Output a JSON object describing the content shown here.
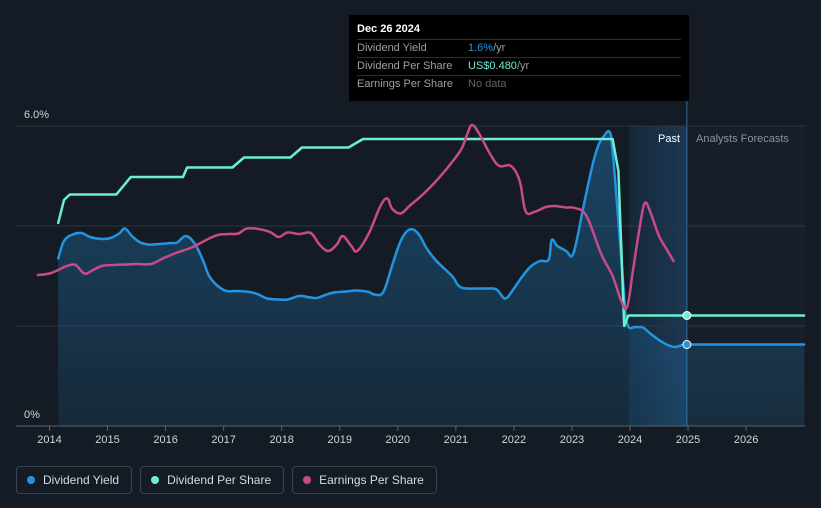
{
  "tooltip": {
    "date": "Dec 26 2024",
    "rows": [
      {
        "label": "Dividend Yield",
        "value": "1.6%",
        "unit": " /yr"
      },
      {
        "label": "Dividend Per Share",
        "value": "US$0.480",
        "unit": " /yr"
      },
      {
        "label": "Earnings Per Share",
        "value": "No data",
        "unit": ""
      }
    ]
  },
  "regions": {
    "past": "Past",
    "forecast": "Analysts Forecasts"
  },
  "legend": [
    {
      "label": "Dividend Yield",
      "color": "#2394df"
    },
    {
      "label": "Dividend Per Share",
      "color": "#6ceed0"
    },
    {
      "label": "Earnings Per Share",
      "color": "#c74a8b"
    }
  ],
  "chart_data": {
    "type": "line",
    "ylim": [
      0,
      6
    ],
    "y_ticks": [
      {
        "value": 6,
        "label": "6.0%"
      },
      {
        "value": 0,
        "label": "0%"
      }
    ],
    "xlim": [
      2013.8,
      2027.0
    ],
    "x_ticks": [
      2014,
      2015,
      2016,
      2017,
      2018,
      2019,
      2020,
      2021,
      2022,
      2023,
      2024,
      2025,
      2026
    ],
    "past_forecast_split": 2024.98,
    "forecast_shade_start": 2023.98,
    "grid": true,
    "legend_placement": "bottom-left",
    "series": [
      {
        "name": "Dividend Yield",
        "color": "#2394df",
        "area": true,
        "values": [
          [
            2014.15,
            3.35
          ],
          [
            2014.25,
            3.7
          ],
          [
            2014.4,
            3.83
          ],
          [
            2014.55,
            3.86
          ],
          [
            2014.7,
            3.78
          ],
          [
            2014.9,
            3.74
          ],
          [
            2015.05,
            3.76
          ],
          [
            2015.2,
            3.85
          ],
          [
            2015.3,
            3.95
          ],
          [
            2015.42,
            3.8
          ],
          [
            2015.55,
            3.68
          ],
          [
            2015.7,
            3.63
          ],
          [
            2015.9,
            3.64
          ],
          [
            2016.1,
            3.66
          ],
          [
            2016.2,
            3.67
          ],
          [
            2016.35,
            3.8
          ],
          [
            2016.5,
            3.65
          ],
          [
            2016.65,
            3.3
          ],
          [
            2016.75,
            3.0
          ],
          [
            2016.9,
            2.8
          ],
          [
            2017.05,
            2.7
          ],
          [
            2017.25,
            2.7
          ],
          [
            2017.45,
            2.68
          ],
          [
            2017.6,
            2.63
          ],
          [
            2017.75,
            2.55
          ],
          [
            2017.95,
            2.53
          ],
          [
            2018.1,
            2.53
          ],
          [
            2018.3,
            2.6
          ],
          [
            2018.45,
            2.58
          ],
          [
            2018.6,
            2.56
          ],
          [
            2018.75,
            2.62
          ],
          [
            2018.9,
            2.67
          ],
          [
            2019.1,
            2.69
          ],
          [
            2019.3,
            2.71
          ],
          [
            2019.5,
            2.68
          ],
          [
            2019.6,
            2.63
          ],
          [
            2019.75,
            2.68
          ],
          [
            2019.9,
            3.2
          ],
          [
            2020.05,
            3.7
          ],
          [
            2020.2,
            3.93
          ],
          [
            2020.35,
            3.85
          ],
          [
            2020.5,
            3.55
          ],
          [
            2020.65,
            3.32
          ],
          [
            2020.8,
            3.15
          ],
          [
            2020.95,
            2.98
          ],
          [
            2021.05,
            2.8
          ],
          [
            2021.2,
            2.75
          ],
          [
            2021.5,
            2.75
          ],
          [
            2021.7,
            2.73
          ],
          [
            2021.85,
            2.55
          ],
          [
            2022.0,
            2.75
          ],
          [
            2022.15,
            3.0
          ],
          [
            2022.3,
            3.2
          ],
          [
            2022.45,
            3.3
          ],
          [
            2022.6,
            3.33
          ],
          [
            2022.65,
            3.72
          ],
          [
            2022.75,
            3.6
          ],
          [
            2022.9,
            3.5
          ],
          [
            2023.0,
            3.4
          ],
          [
            2023.08,
            3.7
          ],
          [
            2023.2,
            4.4
          ],
          [
            2023.35,
            5.2
          ],
          [
            2023.45,
            5.6
          ],
          [
            2023.55,
            5.8
          ],
          [
            2023.65,
            5.88
          ],
          [
            2023.7,
            5.5
          ],
          [
            2023.8,
            4.1
          ],
          [
            2023.88,
            2.9
          ],
          [
            2023.95,
            2.05
          ],
          [
            2024.1,
            1.98
          ],
          [
            2024.22,
            1.97
          ],
          [
            2024.35,
            1.85
          ],
          [
            2024.5,
            1.72
          ],
          [
            2024.65,
            1.62
          ],
          [
            2024.78,
            1.58
          ],
          [
            2024.9,
            1.62
          ],
          [
            2024.98,
            1.63
          ],
          [
            2025.5,
            1.63
          ],
          [
            2026.5,
            1.63
          ],
          [
            2027.0,
            1.63
          ]
        ]
      },
      {
        "name": "Dividend Per Share",
        "color": "#6ceed0",
        "area": false,
        "step": true,
        "values": [
          [
            2014.15,
            4.06
          ],
          [
            2014.25,
            4.52
          ],
          [
            2014.35,
            4.63
          ],
          [
            2015.15,
            4.63
          ],
          [
            2015.4,
            4.98
          ],
          [
            2016.3,
            4.98
          ],
          [
            2016.37,
            5.17
          ],
          [
            2017.15,
            5.17
          ],
          [
            2017.35,
            5.37
          ],
          [
            2018.15,
            5.37
          ],
          [
            2018.35,
            5.57
          ],
          [
            2019.15,
            5.57
          ],
          [
            2019.4,
            5.74
          ],
          [
            2023.7,
            5.74
          ],
          [
            2023.8,
            5.1
          ],
          [
            2023.9,
            2.0
          ],
          [
            2023.97,
            2.21
          ],
          [
            2024.98,
            2.21
          ],
          [
            2027.0,
            2.21
          ]
        ]
      },
      {
        "name": "Earnings Per Share",
        "color": "#c74a8b",
        "area": false,
        "values": [
          [
            2013.8,
            3.02
          ],
          [
            2014.0,
            3.05
          ],
          [
            2014.15,
            3.12
          ],
          [
            2014.3,
            3.2
          ],
          [
            2014.45,
            3.22
          ],
          [
            2014.6,
            3.05
          ],
          [
            2014.75,
            3.12
          ],
          [
            2014.9,
            3.2
          ],
          [
            2015.1,
            3.22
          ],
          [
            2015.3,
            3.23
          ],
          [
            2015.5,
            3.24
          ],
          [
            2015.75,
            3.24
          ],
          [
            2015.95,
            3.35
          ],
          [
            2016.2,
            3.47
          ],
          [
            2016.45,
            3.57
          ],
          [
            2016.7,
            3.72
          ],
          [
            2016.9,
            3.82
          ],
          [
            2017.1,
            3.84
          ],
          [
            2017.25,
            3.85
          ],
          [
            2017.4,
            3.95
          ],
          [
            2017.6,
            3.94
          ],
          [
            2017.8,
            3.88
          ],
          [
            2017.95,
            3.78
          ],
          [
            2018.1,
            3.87
          ],
          [
            2018.3,
            3.84
          ],
          [
            2018.5,
            3.86
          ],
          [
            2018.65,
            3.63
          ],
          [
            2018.8,
            3.5
          ],
          [
            2018.95,
            3.63
          ],
          [
            2019.05,
            3.8
          ],
          [
            2019.2,
            3.6
          ],
          [
            2019.3,
            3.5
          ],
          [
            2019.5,
            3.85
          ],
          [
            2019.7,
            4.4
          ],
          [
            2019.82,
            4.55
          ],
          [
            2019.9,
            4.35
          ],
          [
            2020.05,
            4.25
          ],
          [
            2020.2,
            4.4
          ],
          [
            2020.45,
            4.65
          ],
          [
            2020.7,
            4.95
          ],
          [
            2020.95,
            5.3
          ],
          [
            2021.1,
            5.55
          ],
          [
            2021.2,
            5.85
          ],
          [
            2021.28,
            6.02
          ],
          [
            2021.4,
            5.85
          ],
          [
            2021.6,
            5.42
          ],
          [
            2021.75,
            5.2
          ],
          [
            2021.95,
            5.2
          ],
          [
            2022.1,
            4.9
          ],
          [
            2022.2,
            4.3
          ],
          [
            2022.35,
            4.28
          ],
          [
            2022.55,
            4.38
          ],
          [
            2022.7,
            4.4
          ],
          [
            2022.9,
            4.37
          ],
          [
            2023.05,
            4.36
          ],
          [
            2023.25,
            4.2
          ],
          [
            2023.5,
            3.45
          ],
          [
            2023.7,
            3.0
          ],
          [
            2023.85,
            2.5
          ],
          [
            2023.95,
            2.38
          ],
          [
            2024.05,
            3.1
          ],
          [
            2024.15,
            3.85
          ],
          [
            2024.25,
            4.45
          ],
          [
            2024.35,
            4.28
          ],
          [
            2024.5,
            3.8
          ],
          [
            2024.65,
            3.5
          ],
          [
            2024.75,
            3.3
          ]
        ]
      }
    ],
    "markers": [
      {
        "series": "Dividend Per Share",
        "x": 2024.98,
        "y": 2.21
      },
      {
        "series": "Dividend Yield",
        "x": 2024.98,
        "y": 1.63
      }
    ]
  }
}
